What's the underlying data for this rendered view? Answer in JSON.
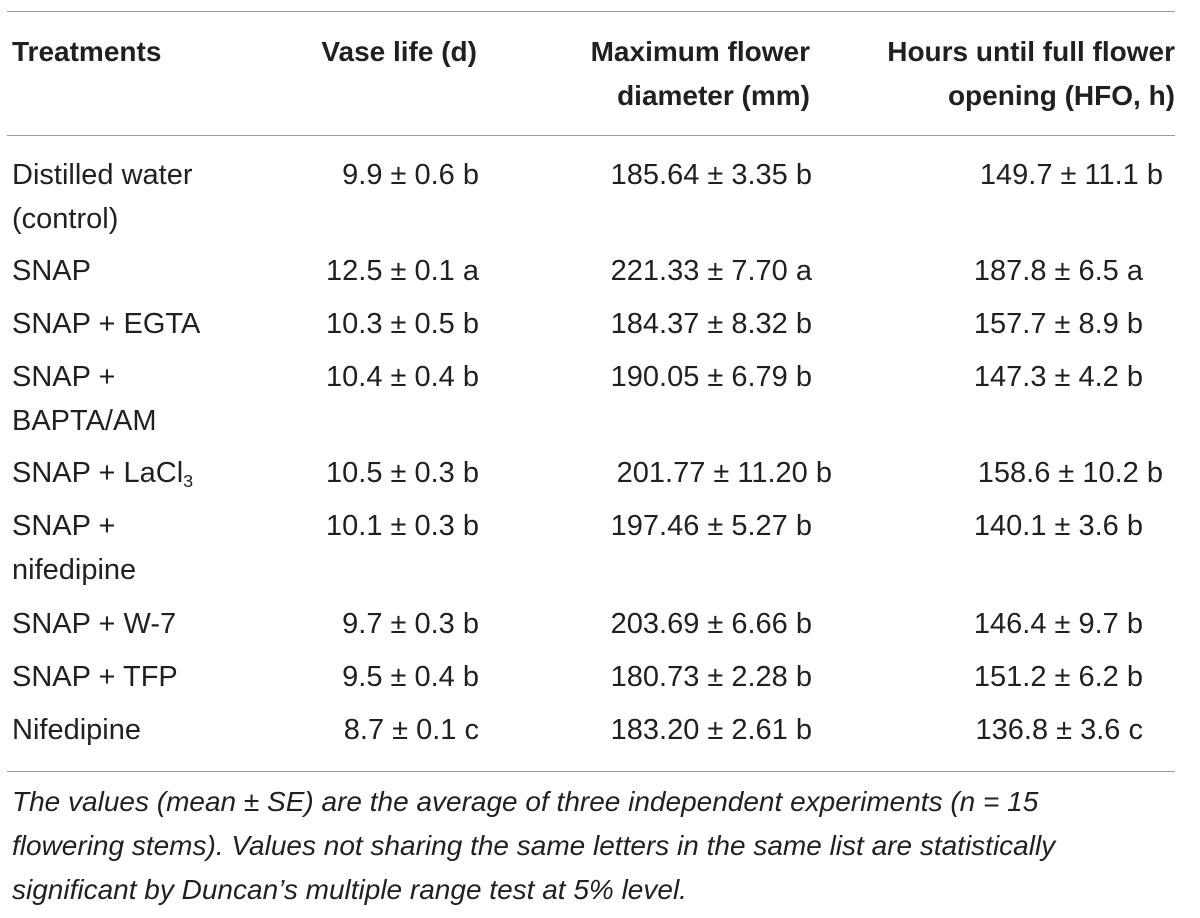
{
  "table": {
    "headers": [
      [
        "Treatments"
      ],
      [
        "Vase life (d)"
      ],
      [
        "Maximum flower",
        "diameter (mm)"
      ],
      [
        "Hours until full flower",
        "opening (HFO, h)"
      ]
    ],
    "rows": [
      {
        "treatment": [
          "Distilled water",
          "(control)"
        ],
        "vase_life": "9.9 ± 0.6 b",
        "max_diameter": "185.64 ± 3.35 b",
        "hfo": "149.7 ± 11.1 b"
      },
      {
        "treatment": [
          "SNAP"
        ],
        "vase_life": "12.5 ± 0.1 a",
        "max_diameter": "221.33 ± 7.70 a",
        "hfo": "187.8 ± 6.5 a"
      },
      {
        "treatment": [
          "SNAP + EGTA"
        ],
        "vase_life": "10.3 ± 0.5 b",
        "max_diameter": "184.37 ± 8.32 b",
        "hfo": "157.7 ± 8.9 b"
      },
      {
        "treatment": [
          "SNAP +",
          "BAPTA/AM"
        ],
        "vase_life": "10.4 ± 0.4 b",
        "max_diameter": "190.05 ± 6.79 b",
        "hfo": "147.3 ± 4.2 b"
      },
      {
        "treatment": [
          "SNAP + LaCl",
          "3"
        ],
        "vase_life": "10.5 ± 0.3 b",
        "max_diameter": "201.77 ± 11.20 b",
        "hfo": "158.6 ± 10.2 b"
      },
      {
        "treatment": [
          "SNAP +",
          "nifedipine"
        ],
        "vase_life": "10.1 ± 0.3 b",
        "max_diameter": "197.46 ± 5.27 b",
        "hfo": "140.1 ± 3.6 b"
      },
      {
        "treatment": [
          "SNAP + W-7"
        ],
        "vase_life": "9.7 ± 0.3 b",
        "max_diameter": "203.69 ± 6.66 b",
        "hfo": "146.4 ± 9.7 b"
      },
      {
        "treatment": [
          "SNAP + TFP"
        ],
        "vase_life": "9.5 ± 0.4 b",
        "max_diameter": "180.73 ± 2.28 b",
        "hfo": "151.2 ± 6.2 b"
      },
      {
        "treatment": [
          "Nifedipine"
        ],
        "vase_life": "8.7 ± 0.1 c",
        "max_diameter": "183.20 ± 2.61 b",
        "hfo": "136.8 ± 3.6 c"
      }
    ]
  },
  "footnote": [
    "The values (mean ± SE) are the average of three independent experiments (n = 15",
    "flowering stems). Values not sharing the same letters in the same list are statistically",
    "significant by Duncan’s multiple range test at 5% level."
  ]
}
